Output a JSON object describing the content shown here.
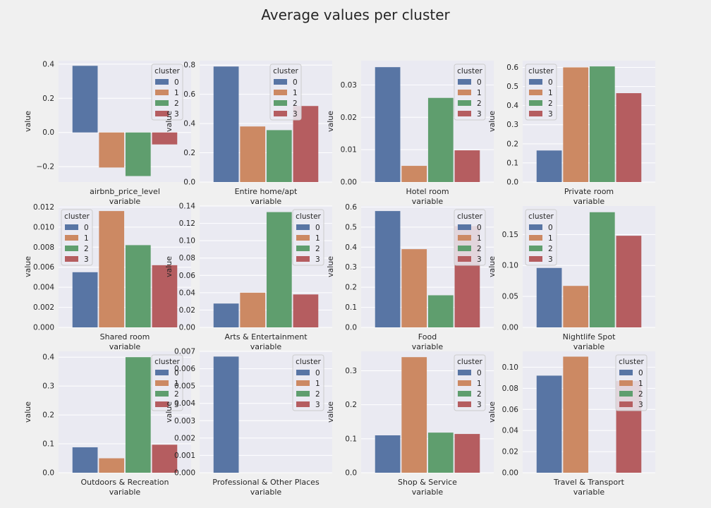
{
  "figure": {
    "title": "Average values per cluster"
  },
  "legend_title": "cluster",
  "cluster_labels": [
    "0",
    "1",
    "2",
    "3"
  ],
  "colors": [
    "#5875a4",
    "#cc8963",
    "#5f9e6e",
    "#b55d60"
  ],
  "chart_data": [
    {
      "type": "bar",
      "category": "airbnb_price_level",
      "xlabel": "variable",
      "ylabel": "value",
      "values": [
        0.39,
        -0.205,
        -0.255,
        -0.07
      ],
      "ylim": [
        -0.29,
        0.42
      ],
      "yticks": [
        "-0.2",
        "0.0",
        "0.2",
        "0.4"
      ],
      "legend_position": "top-right"
    },
    {
      "type": "bar",
      "category": "Entire home/apt",
      "xlabel": "variable",
      "ylabel": "value",
      "values": [
        0.79,
        0.38,
        0.355,
        0.52
      ],
      "ylim": [
        0,
        0.83
      ],
      "yticks": [
        "0.0",
        "0.2",
        "0.4",
        "0.6",
        "0.8"
      ],
      "legend_position": "top-center"
    },
    {
      "type": "bar",
      "category": "Hotel room",
      "xlabel": "variable",
      "ylabel": "value",
      "values": [
        0.0355,
        0.005,
        0.026,
        0.0098
      ],
      "ylim": [
        0,
        0.0375
      ],
      "yticks": [
        "0.00",
        "0.01",
        "0.02",
        "0.03"
      ],
      "legend_position": "top-right"
    },
    {
      "type": "bar",
      "category": "Private room",
      "xlabel": "variable",
      "ylabel": "value",
      "values": [
        0.165,
        0.6,
        0.605,
        0.465
      ],
      "ylim": [
        0,
        0.635
      ],
      "yticks": [
        "0.0",
        "0.1",
        "0.2",
        "0.3",
        "0.4",
        "0.5",
        "0.6"
      ],
      "legend_position": "top-left"
    },
    {
      "type": "bar",
      "category": "Shared room",
      "xlabel": "variable",
      "ylabel": "value",
      "values": [
        0.0055,
        0.0116,
        0.0082,
        0.0062
      ],
      "ylim": [
        0,
        0.0121
      ],
      "yticks": [
        "0.000",
        "0.002",
        "0.004",
        "0.006",
        "0.008",
        "0.010",
        "0.012"
      ],
      "legend_position": "top-left"
    },
    {
      "type": "bar",
      "category": "Arts & Entertainment",
      "xlabel": "variable",
      "ylabel": "value",
      "values": [
        0.0275,
        0.04,
        0.133,
        0.038
      ],
      "ylim": [
        0,
        0.14
      ],
      "yticks": [
        "0.00",
        "0.02",
        "0.04",
        "0.06",
        "0.08",
        "0.10",
        "0.12",
        "0.14"
      ],
      "legend_position": "top-right"
    },
    {
      "type": "bar",
      "category": "Food",
      "xlabel": "variable",
      "ylabel": "value",
      "values": [
        0.58,
        0.39,
        0.16,
        0.505
      ],
      "ylim": [
        0,
        0.605
      ],
      "yticks": [
        "0.0",
        "0.1",
        "0.2",
        "0.3",
        "0.4",
        "0.5",
        "0.6"
      ],
      "legend_position": "top-right"
    },
    {
      "type": "bar",
      "category": "Nightlife Spot",
      "xlabel": "variable",
      "ylabel": "value",
      "values": [
        0.096,
        0.067,
        0.186,
        0.148
      ],
      "ylim": [
        0,
        0.196
      ],
      "yticks": [
        "0.00",
        "0.05",
        "0.10",
        "0.15"
      ],
      "legend_position": "top-left"
    },
    {
      "type": "bar",
      "category": "Outdoors & Recreation",
      "xlabel": "variable",
      "ylabel": "value",
      "values": [
        0.088,
        0.05,
        0.4,
        0.097
      ],
      "ylim": [
        0,
        0.42
      ],
      "yticks": [
        "0.0",
        "0.1",
        "0.2",
        "0.3",
        "0.4"
      ],
      "legend_position": "top-right"
    },
    {
      "type": "bar",
      "category": "Professional & Other Places",
      "xlabel": "variable",
      "ylabel": "value",
      "values": [
        0.0067,
        0,
        0,
        0
      ],
      "ylim": [
        0,
        0.007
      ],
      "yticks": [
        "0.000",
        "0.001",
        "0.002",
        "0.003",
        "0.004",
        "0.005",
        "0.006",
        "0.007"
      ],
      "legend_position": "top-right"
    },
    {
      "type": "bar",
      "category": "Shop & Service",
      "xlabel": "variable",
      "ylabel": "value",
      "values": [
        0.11,
        0.34,
        0.118,
        0.114
      ],
      "ylim": [
        0,
        0.357
      ],
      "yticks": [
        "0.0",
        "0.1",
        "0.2",
        "0.3"
      ],
      "legend_position": "top-right"
    },
    {
      "type": "bar",
      "category": "Travel & Transport",
      "xlabel": "variable",
      "ylabel": "value",
      "values": [
        0.092,
        0.11,
        0,
        0.087
      ],
      "ylim": [
        0,
        0.115
      ],
      "yticks": [
        "0.00",
        "0.02",
        "0.04",
        "0.06",
        "0.08",
        "0.10"
      ],
      "legend_position": "top-right"
    }
  ]
}
